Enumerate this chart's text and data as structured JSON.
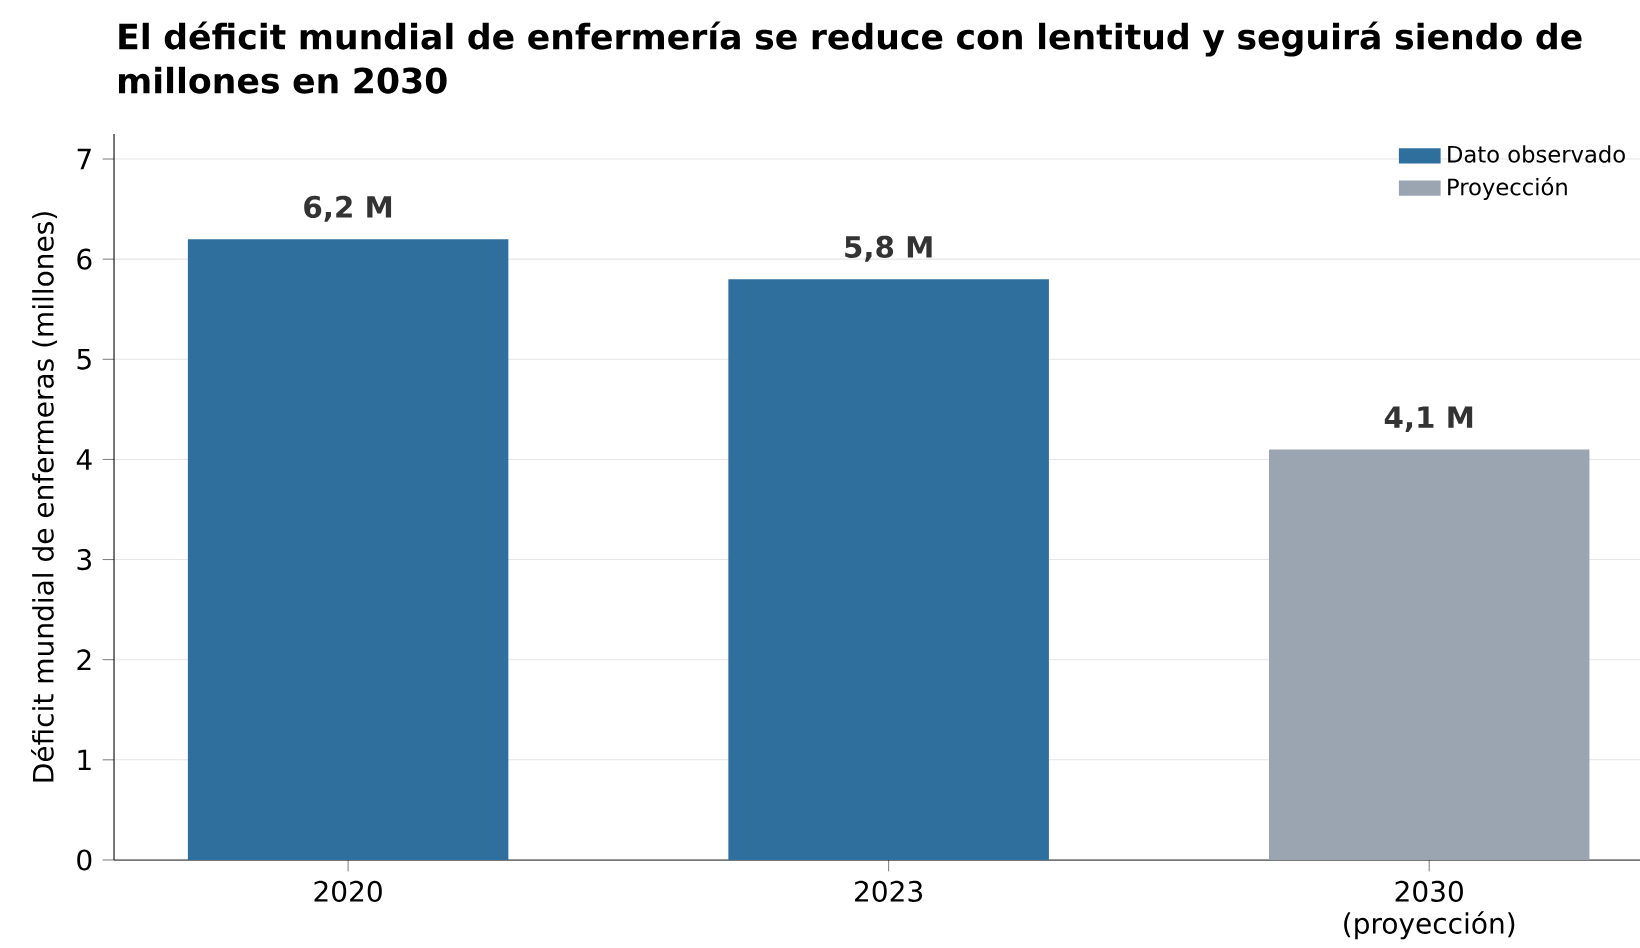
{
  "chart_data": {
    "type": "bar",
    "title": "El déficit mundial de enfermería se reduce con lentitud y seguirá siendo de millones en 2030",
    "ylabel": "Déficit mundial de enfermeras (millones)",
    "categories": [
      "2020",
      "2023",
      "2030 (proyección)"
    ],
    "series": [
      {
        "name": "Dato observado",
        "color": "#2e6f9e",
        "values": [
          6.2,
          5.8,
          null
        ],
        "value_labels": [
          "6,2 M",
          "5,8 M",
          null
        ]
      },
      {
        "name": "Proyección",
        "color": "#9aa5b1",
        "values": [
          null,
          null,
          4.1
        ],
        "value_labels": [
          null,
          null,
          "4,1 M"
        ]
      }
    ],
    "ylim": [
      0,
      7.25
    ],
    "yticks": [
      0,
      1,
      2,
      3,
      4,
      5,
      6,
      7
    ],
    "grid": "y",
    "legend": "top right"
  }
}
